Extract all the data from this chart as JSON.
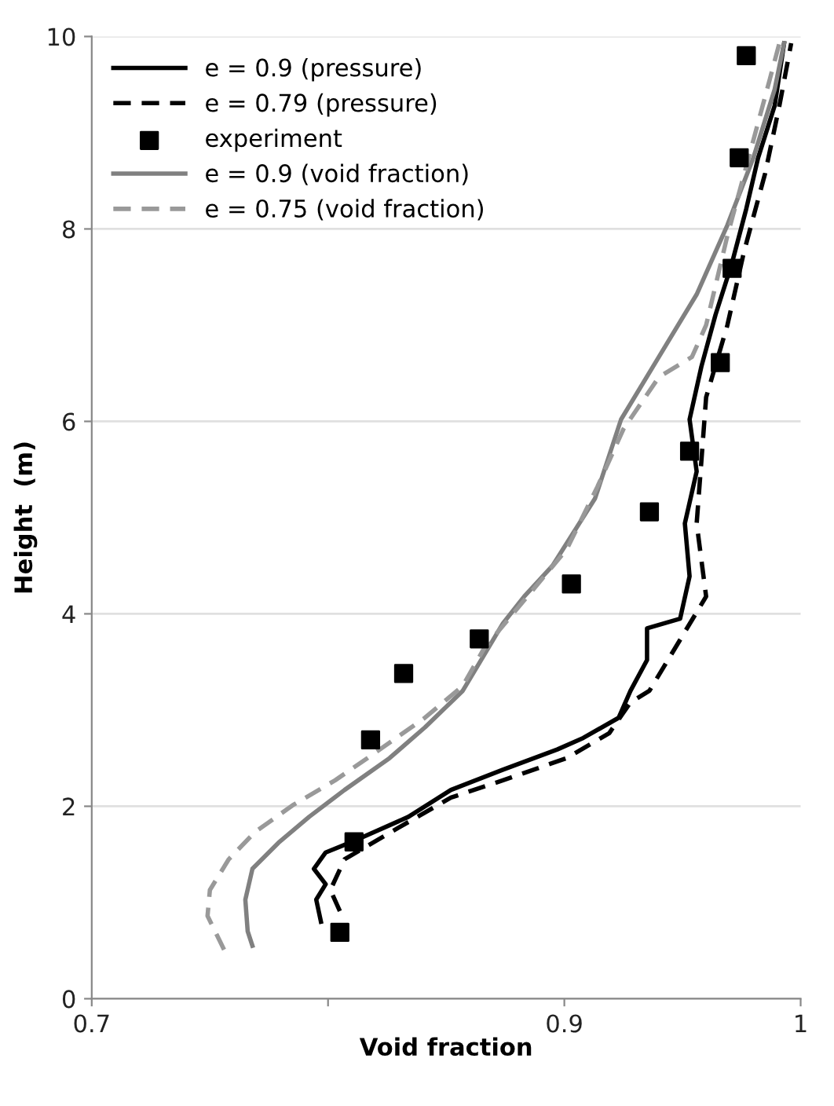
{
  "chart_data": {
    "type": "line",
    "xlabel": "Void fraction",
    "ylabel": "Height  (m)",
    "xlim": [
      0.7,
      1
    ],
    "xticks": [
      0.7,
      {
        "value": 0.8,
        "label": null
      },
      0.9,
      1
    ],
    "ylim": [
      0,
      10
    ],
    "yticks": [
      0,
      2,
      4,
      6,
      8,
      10
    ],
    "grid": "y",
    "legend": "top left",
    "series": [
      {
        "name": "e = 0.9 (pressure)",
        "color": "#000000",
        "line_style": "solid",
        "x": [
          0.797,
          0.795,
          0.799,
          0.794,
          0.799,
          0.812,
          0.834,
          0.852,
          0.874,
          0.897,
          0.908,
          0.923,
          0.928,
          0.935,
          0.935,
          0.949,
          0.953,
          0.951,
          0.956,
          0.953,
          0.958,
          0.964,
          0.971,
          0.977,
          0.982,
          0.989,
          0.993
        ],
        "values": [
          0.8,
          1.03,
          1.19,
          1.35,
          1.52,
          1.65,
          1.89,
          2.17,
          2.38,
          2.59,
          2.71,
          2.92,
          3.2,
          3.52,
          3.85,
          3.95,
          4.39,
          4.94,
          5.48,
          6.02,
          6.57,
          7.11,
          7.65,
          8.21,
          8.74,
          9.28,
          9.93
        ]
      },
      {
        "name": "e = 0.79 (pressure)",
        "color": "#000000",
        "line_style": "dashed",
        "x": [
          0.805,
          0.801,
          0.807,
          0.83,
          0.852,
          0.874,
          0.901,
          0.919,
          0.928,
          0.936,
          0.96,
          0.956,
          0.958,
          0.96,
          0.969,
          0.976,
          0.985,
          0.991,
          0.996
        ],
        "values": [
          0.91,
          1.13,
          1.45,
          1.78,
          2.09,
          2.27,
          2.5,
          2.76,
          3.08,
          3.2,
          4.18,
          4.94,
          5.59,
          6.25,
          7.0,
          7.76,
          8.58,
          9.28,
          9.93
        ]
      },
      {
        "name": "experiment",
        "type": "scatter",
        "marker": "square",
        "color": "#000000",
        "x": [
          0.805,
          0.811,
          0.818,
          0.832,
          0.864,
          0.903,
          0.936,
          0.953,
          0.966,
          0.971,
          0.974,
          0.977
        ],
        "values": [
          0.69,
          1.63,
          2.69,
          3.38,
          3.74,
          4.31,
          5.06,
          5.69,
          6.61,
          7.59,
          8.74,
          9.8
        ]
      },
      {
        "name": "e = 0.9 (void fraction)",
        "color": "#808080",
        "line_style": "solid",
        "x": [
          0.768,
          0.766,
          0.765,
          0.768,
          0.779,
          0.792,
          0.807,
          0.826,
          0.841,
          0.857,
          0.866,
          0.874,
          0.883,
          0.895,
          0.913,
          0.924,
          0.94,
          0.956,
          0.969,
          0.98,
          0.989,
          0.993
        ],
        "values": [
          0.55,
          0.7,
          1.03,
          1.35,
          1.62,
          1.89,
          2.17,
          2.5,
          2.82,
          3.2,
          3.57,
          3.9,
          4.18,
          4.5,
          5.2,
          6.02,
          6.67,
          7.32,
          8.04,
          8.74,
          9.45,
          9.93
        ]
      },
      {
        "name": "e = 0.75 (void fraction)",
        "color": "#999999",
        "line_style": "dashed",
        "x": [
          0.756,
          0.749,
          0.75,
          0.758,
          0.769,
          0.785,
          0.803,
          0.819,
          0.841,
          0.857,
          0.866,
          0.901,
          0.914,
          0.925,
          0.94,
          0.954,
          0.96,
          0.969,
          0.978,
          0.987,
          0.991
        ],
        "values": [
          0.51,
          0.86,
          1.13,
          1.45,
          1.73,
          2.01,
          2.27,
          2.54,
          2.92,
          3.25,
          3.64,
          4.67,
          5.32,
          5.92,
          6.46,
          6.67,
          7.0,
          7.93,
          8.74,
          9.56,
          9.93
        ]
      }
    ]
  }
}
